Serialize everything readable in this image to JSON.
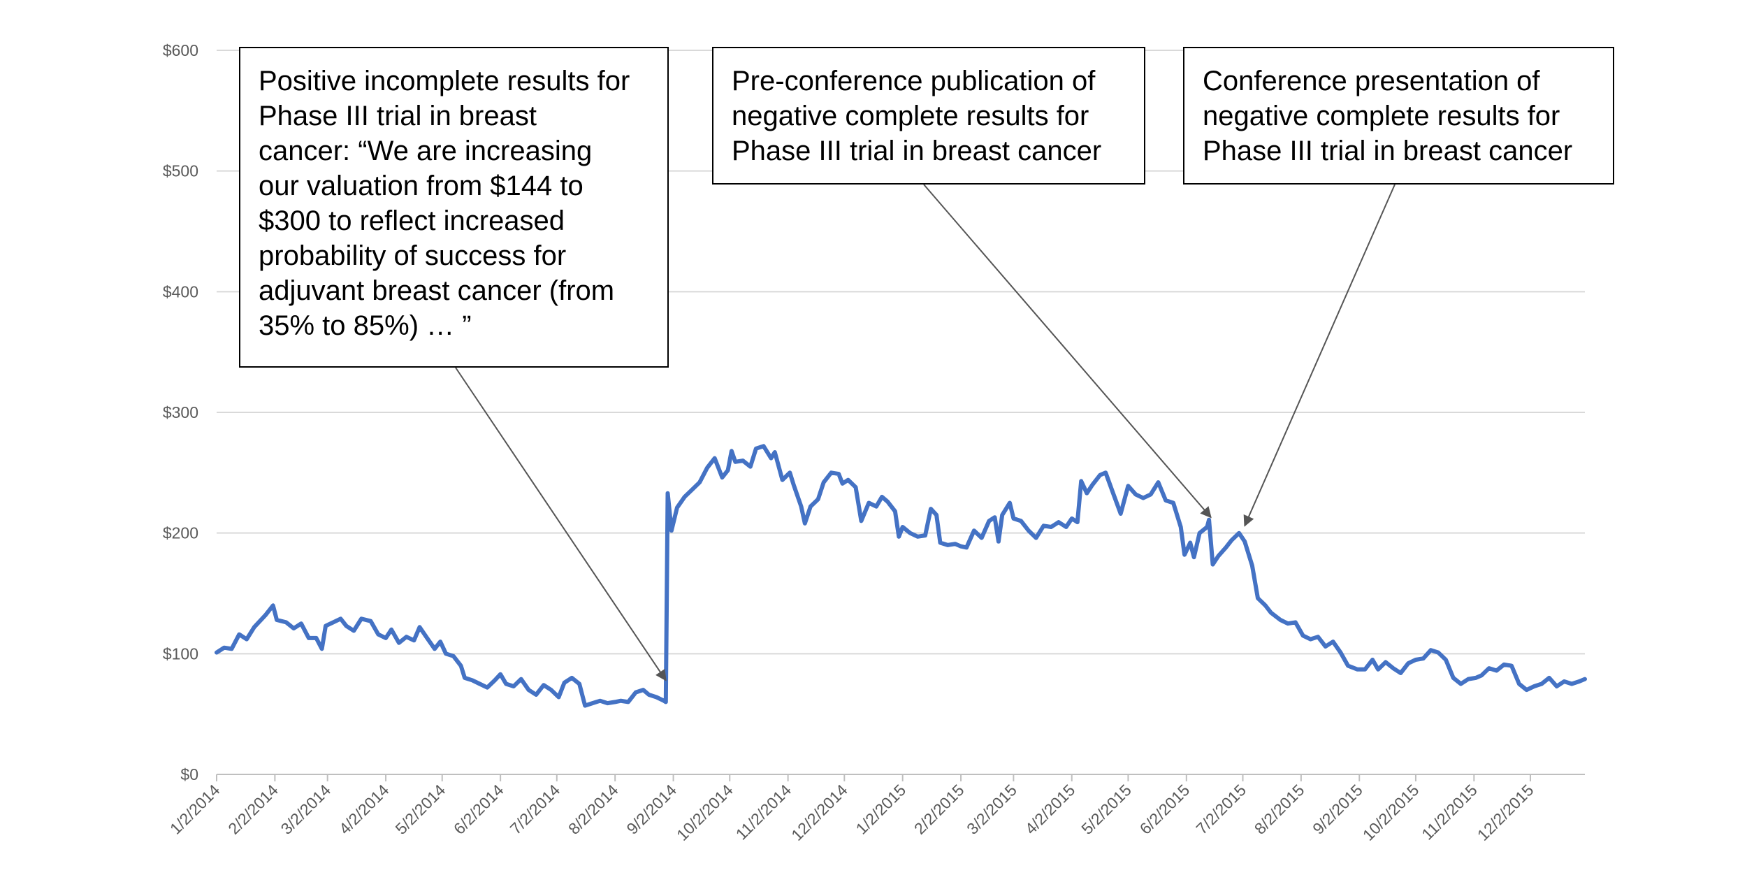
{
  "chart_data": {
    "type": "line",
    "title": "",
    "xlabel": "",
    "ylabel": "",
    "ylim": [
      0,
      600
    ],
    "y_ticks": [
      0,
      100,
      200,
      300,
      400,
      500,
      600
    ],
    "y_tick_labels": [
      "$0",
      "$100",
      "$200",
      "$300",
      "$400",
      "$500",
      "$600"
    ],
    "x_range": [
      "1/2/2014",
      "12/31/2015"
    ],
    "x_tick_labels": [
      "1/2/2014",
      "2/2/2014",
      "3/2/2014",
      "4/2/2014",
      "5/2/2014",
      "6/2/2014",
      "7/2/2014",
      "8/2/2014",
      "9/2/2014",
      "10/2/2014",
      "11/2/2014",
      "12/2/2014",
      "1/2/2015",
      "2/2/2015",
      "3/2/2015",
      "4/2/2015",
      "5/2/2015",
      "6/2/2015",
      "7/2/2015",
      "8/2/2015",
      "9/2/2015",
      "10/2/2015",
      "11/2/2015",
      "12/2/2015"
    ],
    "grid": true,
    "line_color": "#4472c4",
    "series": [
      {
        "points": [
          [
            "1/2/2014",
            101
          ],
          [
            "1/6/2014",
            105
          ],
          [
            "1/10/2014",
            104
          ],
          [
            "1/14/2014",
            116
          ],
          [
            "1/18/2014",
            112
          ],
          [
            "1/22/2014",
            122
          ],
          [
            "1/28/2014",
            132
          ],
          [
            "2/1/2014",
            140
          ],
          [
            "2/3/2014",
            128
          ],
          [
            "2/8/2014",
            126
          ],
          [
            "2/12/2014",
            121
          ],
          [
            "2/16/2014",
            125
          ],
          [
            "2/20/2014",
            113
          ],
          [
            "2/24/2014",
            113
          ],
          [
            "2/27/2014",
            104
          ],
          [
            "3/1/2014",
            123
          ],
          [
            "3/5/2014",
            126
          ],
          [
            "3/9/2014",
            129
          ],
          [
            "3/12/2014",
            123
          ],
          [
            "3/16/2014",
            119
          ],
          [
            "3/20/2014",
            129
          ],
          [
            "3/25/2014",
            127
          ],
          [
            "3/29/2014",
            116
          ],
          [
            "4/2/2014",
            113
          ],
          [
            "4/5/2014",
            120
          ],
          [
            "4/9/2014",
            109
          ],
          [
            "4/13/2014",
            114
          ],
          [
            "4/17/2014",
            111
          ],
          [
            "4/20/2014",
            122
          ],
          [
            "4/24/2014",
            113
          ],
          [
            "4/28/2014",
            104
          ],
          [
            "5/1/2014",
            110
          ],
          [
            "5/4/2014",
            100
          ],
          [
            "5/8/2014",
            98
          ],
          [
            "5/12/2014",
            90
          ],
          [
            "5/14/2014",
            80
          ],
          [
            "5/18/2014",
            78
          ],
          [
            "5/22/2014",
            75
          ],
          [
            "5/26/2014",
            72
          ],
          [
            "5/30/2014",
            78
          ],
          [
            "6/2/2014",
            83
          ],
          [
            "6/5/2014",
            75
          ],
          [
            "6/9/2014",
            73
          ],
          [
            "6/13/2014",
            79
          ],
          [
            "6/17/2014",
            70
          ],
          [
            "6/21/2014",
            66
          ],
          [
            "6/25/2014",
            74
          ],
          [
            "6/29/2014",
            70
          ],
          [
            "7/3/2014",
            64
          ],
          [
            "7/6/2014",
            76
          ],
          [
            "7/10/2014",
            80
          ],
          [
            "7/14/2014",
            75
          ],
          [
            "7/17/2014",
            57
          ],
          [
            "7/21/2014",
            59
          ],
          [
            "7/25/2014",
            61
          ],
          [
            "7/29/2014",
            59
          ],
          [
            "8/2/2014",
            60
          ],
          [
            "8/5/2014",
            61
          ],
          [
            "8/9/2014",
            60
          ],
          [
            "8/13/2014",
            68
          ],
          [
            "8/17/2014",
            70
          ],
          [
            "8/20/2014",
            66
          ],
          [
            "8/24/2014",
            64
          ],
          [
            "8/28/2014",
            61
          ],
          [
            "8/29/2014",
            60
          ],
          [
            "8/30/2014",
            233
          ],
          [
            "9/1/2014",
            202
          ],
          [
            "9/4/2014",
            221
          ],
          [
            "9/8/2014",
            230
          ],
          [
            "9/12/2014",
            236
          ],
          [
            "9/16/2014",
            242
          ],
          [
            "9/20/2014",
            254
          ],
          [
            "9/24/2014",
            262
          ],
          [
            "9/28/2014",
            246
          ],
          [
            "10/1/2014",
            252
          ],
          [
            "10/3/2014",
            268
          ],
          [
            "10/5/2014",
            259
          ],
          [
            "10/9/2014",
            260
          ],
          [
            "10/13/2014",
            255
          ],
          [
            "10/16/2014",
            270
          ],
          [
            "10/20/2014",
            272
          ],
          [
            "10/24/2014",
            262
          ],
          [
            "10/26/2014",
            267
          ],
          [
            "10/30/2014",
            244
          ],
          [
            "11/3/2014",
            250
          ],
          [
            "11/5/2014",
            240
          ],
          [
            "11/9/2014",
            222
          ],
          [
            "11/11/2014",
            208
          ],
          [
            "11/14/2014",
            222
          ],
          [
            "11/18/2014",
            228
          ],
          [
            "11/21/2014",
            242
          ],
          [
            "11/25/2014",
            250
          ],
          [
            "11/29/2014",
            249
          ],
          [
            "12/1/2014",
            241
          ],
          [
            "12/4/2014",
            244
          ],
          [
            "12/8/2014",
            238
          ],
          [
            "12/11/2014",
            210
          ],
          [
            "12/15/2014",
            225
          ],
          [
            "12/19/2014",
            222
          ],
          [
            "12/22/2014",
            230
          ],
          [
            "12/25/2014",
            226
          ],
          [
            "12/29/2014",
            218
          ],
          [
            "12/31/2014",
            197
          ],
          [
            "1/2/2015",
            205
          ],
          [
            "1/6/2015",
            200
          ],
          [
            "1/10/2015",
            197
          ],
          [
            "1/14/2015",
            198
          ],
          [
            "1/17/2015",
            220
          ],
          [
            "1/20/2015",
            215
          ],
          [
            "1/22/2015",
            192
          ],
          [
            "1/26/2015",
            190
          ],
          [
            "1/30/2015",
            191
          ],
          [
            "2/2/2015",
            189
          ],
          [
            "2/5/2015",
            188
          ],
          [
            "2/9/2015",
            202
          ],
          [
            "2/13/2015",
            196
          ],
          [
            "2/17/2015",
            210
          ],
          [
            "2/20/2015",
            213
          ],
          [
            "2/22/2015",
            193
          ],
          [
            "2/24/2015",
            215
          ],
          [
            "2/28/2015",
            225
          ],
          [
            "3/2/2015",
            212
          ],
          [
            "3/6/2015",
            210
          ],
          [
            "3/10/2015",
            202
          ],
          [
            "3/14/2015",
            196
          ],
          [
            "3/18/2015",
            206
          ],
          [
            "3/22/2015",
            205
          ],
          [
            "3/26/2015",
            209
          ],
          [
            "3/30/2015",
            205
          ],
          [
            "4/2/2015",
            212
          ],
          [
            "4/5/2015",
            209
          ],
          [
            "4/7/2015",
            243
          ],
          [
            "4/10/2015",
            233
          ],
          [
            "4/13/2015",
            240
          ],
          [
            "4/17/2015",
            248
          ],
          [
            "4/20/2015",
            250
          ],
          [
            "4/24/2015",
            233
          ],
          [
            "4/28/2015",
            216
          ],
          [
            "5/2/2015",
            239
          ],
          [
            "5/6/2015",
            232
          ],
          [
            "5/10/2015",
            229
          ],
          [
            "5/14/2015",
            232
          ],
          [
            "5/18/2015",
            242
          ],
          [
            "5/22/2015",
            227
          ],
          [
            "5/26/2015",
            225
          ],
          [
            "5/30/2015",
            205
          ],
          [
            "6/1/2015",
            182
          ],
          [
            "6/4/2015",
            192
          ],
          [
            "6/6/2015",
            180
          ],
          [
            "6/9/2015",
            200
          ],
          [
            "6/13/2015",
            205
          ],
          [
            "6/14/2015",
            211
          ],
          [
            "6/16/2015",
            174
          ],
          [
            "6/19/2015",
            181
          ],
          [
            "6/23/2015",
            188
          ],
          [
            "6/26/2015",
            194
          ],
          [
            "6/30/2015",
            200
          ],
          [
            "7/3/2015",
            193
          ],
          [
            "7/7/2015",
            173
          ],
          [
            "7/10/2015",
            146
          ],
          [
            "7/14/2015",
            140
          ],
          [
            "7/17/2015",
            134
          ],
          [
            "7/22/2015",
            128
          ],
          [
            "7/26/2015",
            125
          ],
          [
            "7/30/2015",
            126
          ],
          [
            "8/3/2015",
            115
          ],
          [
            "8/7/2015",
            112
          ],
          [
            "8/11/2015",
            114
          ],
          [
            "8/15/2015",
            106
          ],
          [
            "8/19/2015",
            110
          ],
          [
            "8/23/2015",
            101
          ],
          [
            "8/27/2015",
            90
          ],
          [
            "9/1/2015",
            87
          ],
          [
            "9/5/2015",
            87
          ],
          [
            "9/9/2015",
            95
          ],
          [
            "9/12/2015",
            87
          ],
          [
            "9/16/2015",
            93
          ],
          [
            "9/20/2015",
            88
          ],
          [
            "9/24/2015",
            84
          ],
          [
            "9/28/2015",
            92
          ],
          [
            "10/2/2015",
            95
          ],
          [
            "10/6/2015",
            96
          ],
          [
            "10/10/2015",
            103
          ],
          [
            "10/14/2015",
            101
          ],
          [
            "10/18/2015",
            95
          ],
          [
            "10/22/2015",
            80
          ],
          [
            "10/26/2015",
            75
          ],
          [
            "10/30/2015",
            79
          ],
          [
            "11/3/2015",
            80
          ],
          [
            "11/6/2015",
            82
          ],
          [
            "11/10/2015",
            88
          ],
          [
            "11/14/2015",
            86
          ],
          [
            "11/18/2015",
            91
          ],
          [
            "11/22/2015",
            90
          ],
          [
            "11/26/2015",
            75
          ],
          [
            "11/30/2015",
            70
          ],
          [
            "12/4/2015",
            73
          ],
          [
            "12/8/2015",
            75
          ],
          [
            "12/12/2015",
            80
          ],
          [
            "12/16/2015",
            73
          ],
          [
            "12/20/2015",
            77
          ],
          [
            "12/24/2015",
            75
          ],
          [
            "12/28/2015",
            77
          ],
          [
            "12/31/2015",
            79
          ]
        ]
      }
    ],
    "annotations": [
      {
        "lines": [
          "Positive incomplete results for",
          "Phase III trial in breast",
          "cancer:  “We are increasing",
          "our valuation from $144 to",
          "$300 to reflect increased",
          "probability of success for",
          "adjuvant breast cancer (from",
          "35% to 85%) … ”"
        ],
        "target": [
          "8/29/2014",
          78
        ]
      },
      {
        "lines": [
          "Pre-conference publication of",
          "negative complete results for",
          "Phase III trial in breast cancer"
        ],
        "target": [
          "6/15/2015",
          213
        ]
      },
      {
        "lines": [
          "Conference presentation of",
          "negative complete results for",
          "Phase III trial in breast cancer"
        ],
        "target": [
          "7/3/2015",
          206
        ]
      }
    ]
  }
}
